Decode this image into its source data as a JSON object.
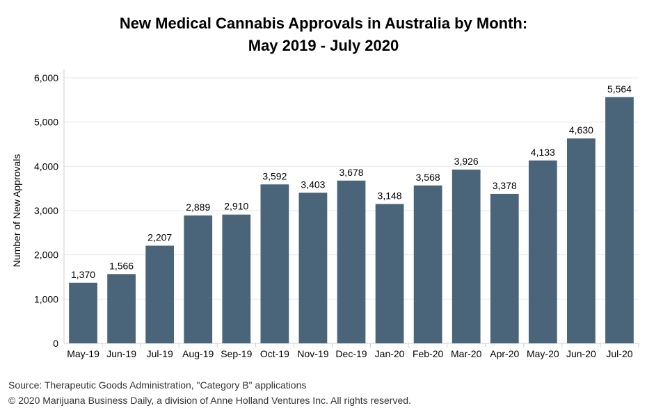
{
  "chart_data": {
    "type": "bar",
    "title_line1": "New Medical Cannabis Approvals in Australia by Month:",
    "title_line2": "May 2019 - July 2020",
    "xlabel": "",
    "ylabel": "Number of New Approvals",
    "ylim": [
      0,
      6000
    ],
    "yticks": [
      0,
      1000,
      2000,
      3000,
      4000,
      5000,
      6000
    ],
    "ytick_labels": [
      "0",
      "1,000",
      "2,000",
      "3,000",
      "4,000",
      "5,000",
      "6,000"
    ],
    "categories": [
      "May-19",
      "Jun-19",
      "Jul-19",
      "Aug-19",
      "Sep-19",
      "Oct-19",
      "Nov-19",
      "Dec-19",
      "Jan-20",
      "Feb-20",
      "Mar-20",
      "Apr-20",
      "May-20",
      "Jun-20",
      "Jul-20"
    ],
    "values": [
      1370,
      1566,
      2207,
      2889,
      2910,
      3592,
      3403,
      3678,
      3148,
      3568,
      3926,
      3378,
      4133,
      4630,
      5564
    ],
    "value_labels": [
      "1,370",
      "1,566",
      "2,207",
      "2,889",
      "2,910",
      "3,592",
      "3,403",
      "3,678",
      "3,148",
      "3,568",
      "3,926",
      "3,378",
      "4,133",
      "4,630",
      "5,564"
    ],
    "bar_color": "#4a6479",
    "grid": true,
    "legend": "none"
  },
  "footer": {
    "source": "Source: Therapeutic Goods Administration, \"Category B\" applications",
    "copyright": "© 2020 Marijuana Business Daily, a division of Anne Holland Ventures Inc. All rights reserved."
  }
}
